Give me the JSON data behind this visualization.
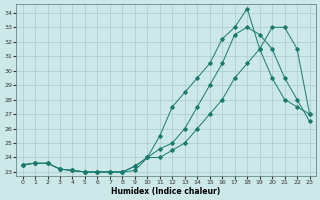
{
  "xlabel": "Humidex (Indice chaleur)",
  "xlim": [
    -0.5,
    23.5
  ],
  "ylim": [
    22.7,
    34.6
  ],
  "yticks": [
    23,
    24,
    25,
    26,
    27,
    28,
    29,
    30,
    31,
    32,
    33,
    34
  ],
  "xticks": [
    0,
    1,
    2,
    3,
    4,
    5,
    6,
    7,
    8,
    9,
    10,
    11,
    12,
    13,
    14,
    15,
    16,
    17,
    18,
    19,
    20,
    21,
    22,
    23
  ],
  "bg_color": "#cce8e8",
  "line_color": "#1a7a6e",
  "grid_color": "#aacccc",
  "curve1_x": [
    0,
    1,
    2,
    3,
    4,
    5,
    6,
    7,
    8,
    9,
    10,
    11,
    12,
    13,
    14,
    15,
    16,
    17,
    18,
    19,
    20,
    21,
    22,
    23
  ],
  "curve1_y": [
    23.5,
    23.6,
    23.6,
    23.2,
    23.1,
    23.0,
    23.0,
    23.0,
    23.0,
    23.1,
    24.0,
    25.5,
    27.5,
    28.5,
    29.5,
    30.5,
    32.2,
    33.0,
    34.3,
    31.5,
    29.5,
    28.0,
    27.5,
    27.0
  ],
  "curve2_x": [
    0,
    1,
    2,
    3,
    4,
    5,
    6,
    7,
    8,
    9,
    10,
    11,
    12,
    13,
    14,
    15,
    16,
    17,
    18,
    19,
    20,
    21,
    22,
    23
  ],
  "curve2_y": [
    23.5,
    23.6,
    23.6,
    23.2,
    23.1,
    23.0,
    23.0,
    23.0,
    23.0,
    23.4,
    24.0,
    24.6,
    25.0,
    26.0,
    27.5,
    29.0,
    30.5,
    32.5,
    33.0,
    32.5,
    31.5,
    29.5,
    28.0,
    26.5
  ],
  "curve3_x": [
    0,
    1,
    2,
    3,
    4,
    5,
    6,
    7,
    8,
    9,
    10,
    11,
    12,
    13,
    14,
    15,
    16,
    17,
    18,
    19,
    20,
    21,
    22,
    23
  ],
  "curve3_y": [
    23.5,
    23.6,
    23.6,
    23.2,
    23.1,
    23.0,
    23.0,
    23.0,
    23.0,
    23.4,
    24.0,
    24.0,
    24.5,
    25.0,
    26.0,
    27.0,
    28.0,
    29.5,
    30.5,
    31.5,
    33.0,
    33.0,
    31.5,
    27.0
  ]
}
